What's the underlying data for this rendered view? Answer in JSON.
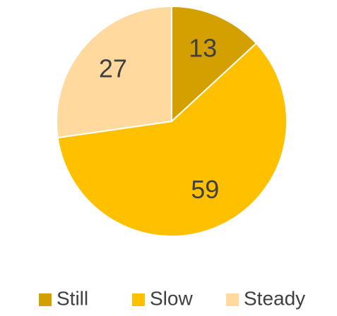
{
  "chart_data": {
    "type": "pie",
    "categories": [
      "Still",
      "Slow",
      "Steady"
    ],
    "values": [
      13,
      59,
      27
    ],
    "colors": [
      "#d4a000",
      "#ffc000",
      "#ffd99e"
    ],
    "legend": "bottom"
  }
}
